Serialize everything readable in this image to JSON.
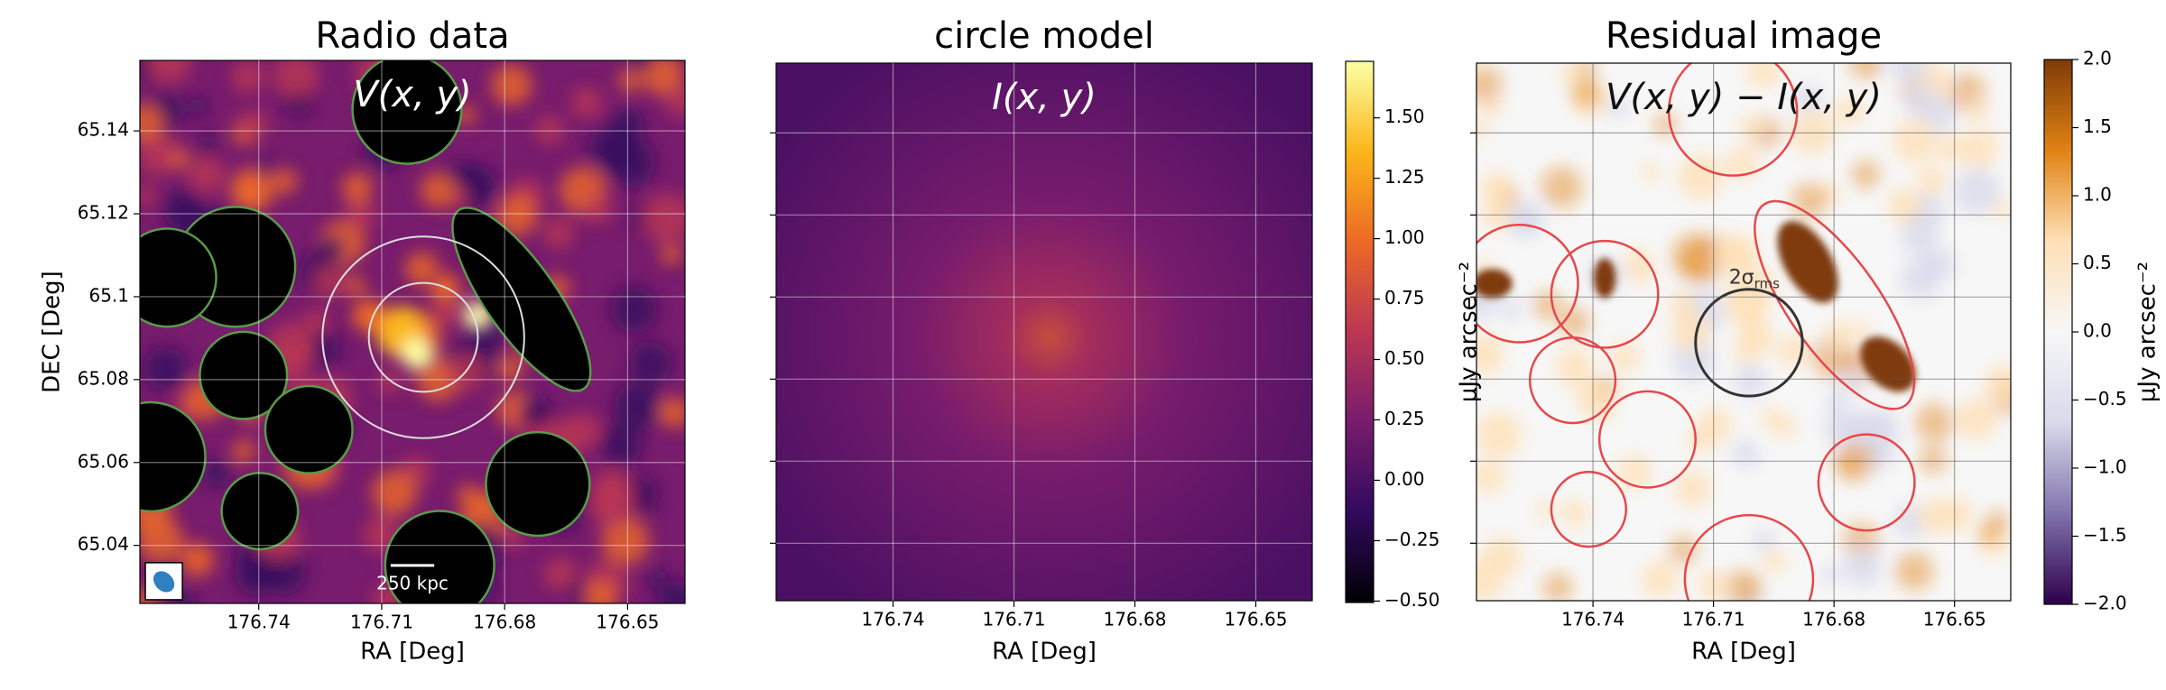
{
  "chart_data": [
    {
      "type": "heatmap",
      "title": "Radio data",
      "annotation": "V(x, y)",
      "scalebar_label": "250 kpc",
      "xlabel": "RA [Deg]",
      "ylabel": "DEC [Deg]",
      "xlim": [
        176.769,
        176.636
      ],
      "xticks": [
        176.74,
        176.71,
        176.68,
        176.65
      ],
      "ylim": [
        65.026,
        65.157
      ],
      "yticks": [
        65.04,
        65.06,
        65.08,
        65.1,
        65.12,
        65.14
      ],
      "grid": true,
      "colormap": [
        "#000004",
        "#320a5e",
        "#781c6d",
        "#bc3754",
        "#ed6925",
        "#fbb61a",
        "#fcffa4"
      ]
    },
    {
      "type": "heatmap",
      "title": "circle model",
      "annotation": "I(x, y)",
      "xlabel": "RA [Deg]",
      "xlim": [
        176.769,
        176.636
      ],
      "xticks": [
        176.74,
        176.71,
        176.68,
        176.65
      ],
      "grid": true,
      "colormap": [
        "#000004",
        "#320a5e",
        "#781c6d",
        "#bc3754",
        "#ed6925",
        "#fbb61a",
        "#fcffa4"
      ],
      "colorbar": {
        "lim": [
          -0.506,
          1.734
        ],
        "ticks": [
          {
            "value": -0.5,
            "label": "−0.50"
          },
          {
            "value": -0.25,
            "label": "−0.25"
          },
          {
            "value": 0,
            "label": "0.00"
          },
          {
            "value": 0.25,
            "label": "0.25"
          },
          {
            "value": 0.5,
            "label": "0.50"
          },
          {
            "value": 0.75,
            "label": "0.75"
          },
          {
            "value": 1,
            "label": "1.00"
          },
          {
            "value": 1.25,
            "label": "1.25"
          },
          {
            "value": 1.5,
            "label": "1.50"
          }
        ]
      }
    },
    {
      "type": "heatmap",
      "title": "Residual image",
      "annotation": "V(x, y) − I(x, y)",
      "contour_label": "2σ",
      "contour_label_sub": "rms",
      "xlabel": "RA [Deg]",
      "ylabel": "μJy arcsec⁻²",
      "xlim": [
        176.769,
        176.636
      ],
      "xticks": [
        176.74,
        176.71,
        176.68,
        176.65
      ],
      "grid": true,
      "colormap": [
        "#2d004b",
        "#8073ac",
        "#d8daeb",
        "#f7f7f7",
        "#fee0b6",
        "#e08214",
        "#7f3b08"
      ],
      "colorbar": {
        "label": "μJy arcsec⁻²",
        "lim": [
          -2,
          2
        ],
        "ticks": [
          {
            "value": -2,
            "label": "−2.0"
          },
          {
            "value": -1.5,
            "label": "−1.5"
          },
          {
            "value": -1,
            "label": "−1.0"
          },
          {
            "value": -0.5,
            "label": "−0.5"
          },
          {
            "value": 0,
            "label": "0.0"
          },
          0.5,
          {
            "value": 1,
            "label": "1.0"
          },
          1.5,
          {
            "value": 2,
            "label": "2.0"
          }
        ]
      }
    }
  ]
}
